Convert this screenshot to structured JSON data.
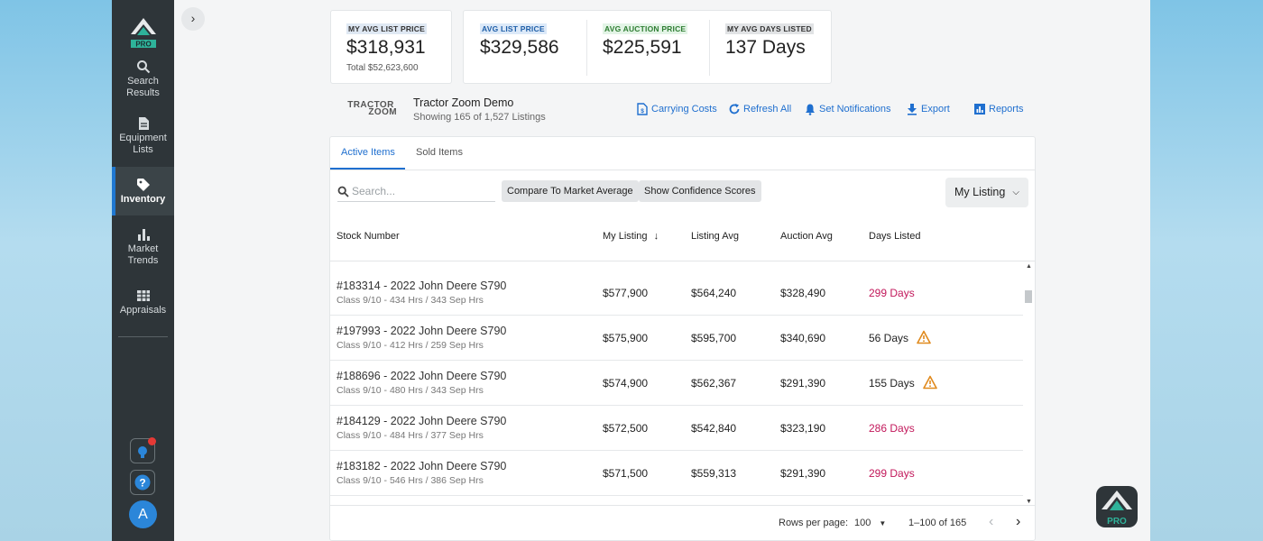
{
  "sidebar": {
    "logo_badge": "PRO",
    "items": [
      {
        "label": "Search Results",
        "icon": "search-icon"
      },
      {
        "label": "Equipment Lists",
        "icon": "document-icon"
      },
      {
        "label": "Inventory",
        "icon": "tag-icon",
        "active": true
      },
      {
        "label": "Market Trends",
        "icon": "bar-chart-icon"
      },
      {
        "label": "Appraisals",
        "icon": "table-icon"
      }
    ],
    "avatar_initial": "A"
  },
  "stats": [
    {
      "label": "MY AVG LIST PRICE",
      "value": "$318,931",
      "sub": "Total $52,623,600",
      "color": "#dfe8f3"
    },
    {
      "label": "AVG LIST PRICE",
      "value": "$329,586",
      "sub": "",
      "color": "#dce9f8"
    },
    {
      "label": "AVG AUCTION PRICE",
      "value": "$225,591",
      "sub": "",
      "color": "#e3f4e6"
    },
    {
      "label": "MY AVG DAYS LISTED",
      "value": "137 Days",
      "sub": "",
      "color": "#e1e3e5"
    }
  ],
  "dealer": {
    "logo_text_top": "TRACTOR",
    "logo_text_bottom": "ZOOM",
    "name": "Tractor Zoom Demo",
    "showing": "Showing 165 of 1,527 Listings"
  },
  "actions": {
    "carrying_costs": "Carrying Costs",
    "refresh_all": "Refresh All",
    "set_notifications": "Set Notifications",
    "export": "Export",
    "reports": "Reports"
  },
  "tabs": {
    "active": "Active Items",
    "sold": "Sold Items"
  },
  "toolbar": {
    "search_placeholder": "Search...",
    "compare": "Compare To Market Average",
    "confidence": "Show Confidence Scores",
    "sort_select": "My Listing"
  },
  "table": {
    "columns": [
      "Stock Number",
      "My Listing",
      "Listing Avg",
      "Auction Avg",
      "Days Listed"
    ],
    "rows": [
      {
        "title": "#183314 - 2022 John Deere S790",
        "sub": "Class 9/10 - 434 Hrs / 343 Sep Hrs",
        "my": "$577,900",
        "avg": "$564,240",
        "auction": "$328,490",
        "days": "299 Days",
        "old": true,
        "warn": false
      },
      {
        "title": "#197993 - 2022 John Deere S790",
        "sub": "Class 9/10 - 412 Hrs / 259 Sep Hrs",
        "my": "$575,900",
        "avg": "$595,700",
        "auction": "$340,690",
        "days": "56 Days",
        "old": false,
        "warn": true
      },
      {
        "title": "#188696 - 2022 John Deere S790",
        "sub": "Class 9/10 - 480 Hrs / 343 Sep Hrs",
        "my": "$574,900",
        "avg": "$562,367",
        "auction": "$291,390",
        "days": "155 Days",
        "old": false,
        "warn": true
      },
      {
        "title": "#184129 - 2022 John Deere S790",
        "sub": "Class 9/10 - 484 Hrs / 377 Sep Hrs",
        "my": "$572,500",
        "avg": "$542,840",
        "auction": "$323,190",
        "days": "286 Days",
        "old": true,
        "warn": false
      },
      {
        "title": "#183182 - 2022 John Deere S790",
        "sub": "Class 9/10 - 546 Hrs / 386 Sep Hrs",
        "my": "$571,500",
        "avg": "$559,313",
        "auction": "$291,390",
        "days": "299 Days",
        "old": true,
        "warn": false
      }
    ]
  },
  "pagination": {
    "rows_per_page_label": "Rows per page:",
    "rows_per_page": "100",
    "range": "1–100 of 165"
  },
  "pro_badge": "PRO"
}
